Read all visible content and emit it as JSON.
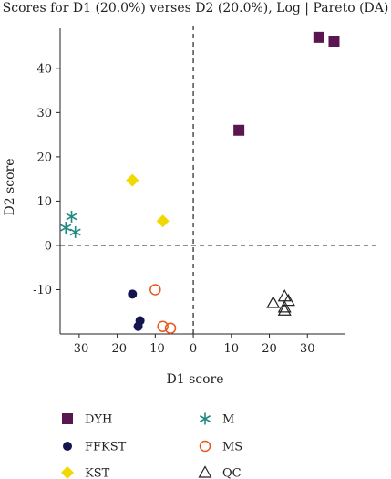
{
  "chart_data": {
    "type": "scatter",
    "title": "Scores for D1 (20.0%) verses D2 (20.0%), Log | Pareto (DA)",
    "xlabel": "D1 score",
    "ylabel": "D2 score",
    "xlim": [
      -35,
      40
    ],
    "ylim": [
      -20,
      48
    ],
    "xticks": [
      -30,
      -20,
      -10,
      0,
      10,
      20,
      30
    ],
    "yticks": [
      -10,
      0,
      10,
      20,
      30,
      40
    ],
    "reference_lines": {
      "x": 0,
      "y": 0,
      "style": "dashed"
    },
    "grid": false,
    "legend_position": "bottom",
    "series": [
      {
        "name": "DYH",
        "marker": "square",
        "color": "#5a1650",
        "points": [
          [
            33,
            47
          ],
          [
            37,
            46
          ],
          [
            12,
            26
          ]
        ]
      },
      {
        "name": "FFKST",
        "marker": "circle",
        "color": "#14154f",
        "points": [
          [
            -16,
            -11
          ],
          [
            -14,
            -17
          ],
          [
            -14.5,
            -18.3
          ]
        ]
      },
      {
        "name": "KST",
        "marker": "diamond",
        "color": "#f0d800",
        "points": [
          [
            -16,
            14.7
          ],
          [
            -8,
            5.5
          ]
        ]
      },
      {
        "name": "M",
        "marker": "asterisk",
        "color": "#1f8a80",
        "points": [
          [
            -32,
            6.5
          ],
          [
            -33.5,
            4
          ],
          [
            -31,
            3
          ]
        ]
      },
      {
        "name": "MS",
        "marker": "open-circle",
        "color": "#e8581c",
        "points": [
          [
            -10,
            -10
          ],
          [
            -8,
            -18.3
          ],
          [
            -6,
            -18.7
          ]
        ]
      },
      {
        "name": "QC",
        "marker": "open-triangle",
        "color": "#222222",
        "points": [
          [
            21,
            -13
          ],
          [
            24,
            -11.5
          ],
          [
            25,
            -12.5
          ],
          [
            24,
            -14
          ],
          [
            24,
            -14.7
          ]
        ]
      }
    ]
  }
}
